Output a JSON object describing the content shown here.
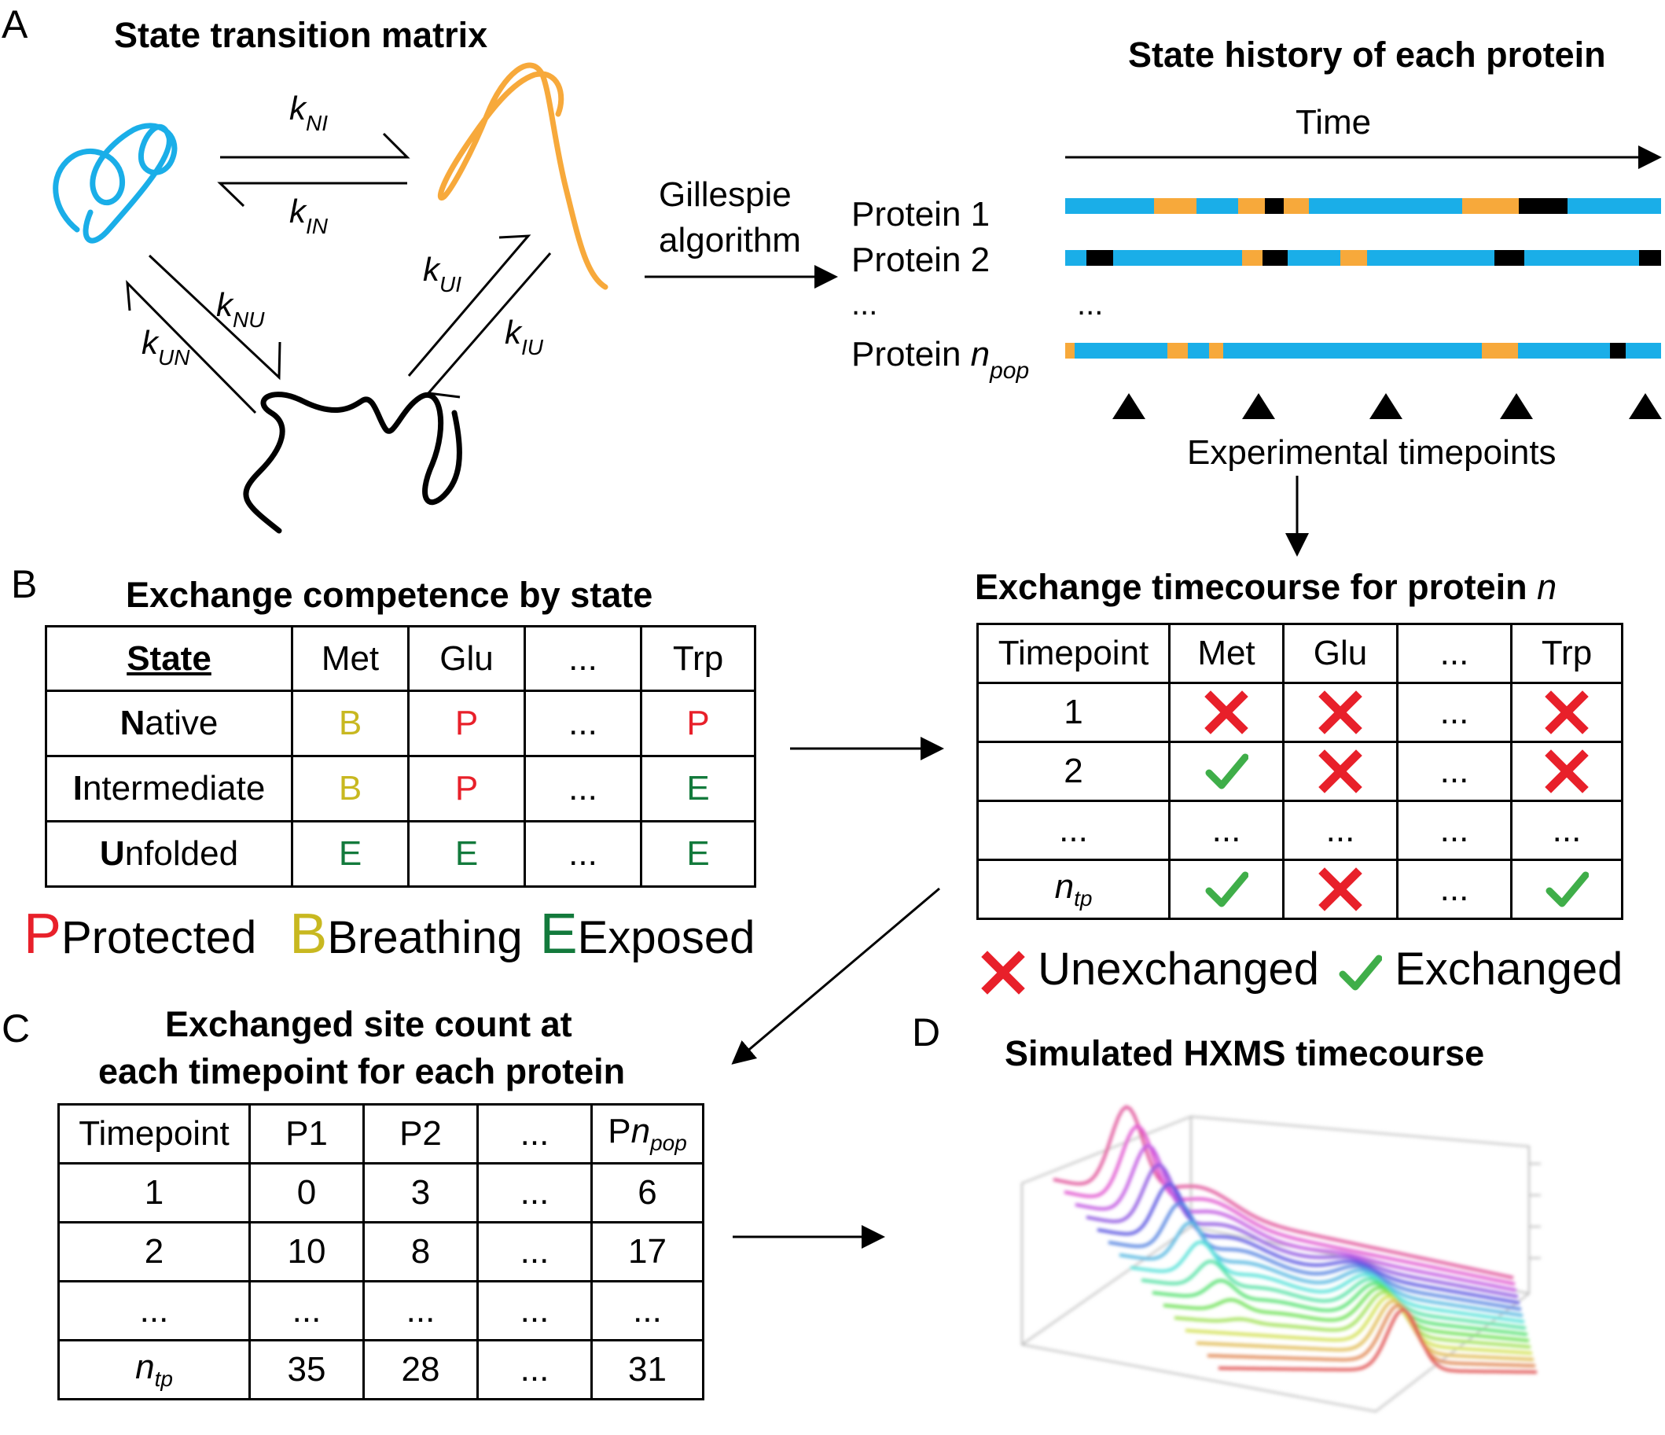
{
  "panels": {
    "a": "A",
    "b": "B",
    "c": "C",
    "d": "D"
  },
  "panel_a": {
    "title_matrix": "State transition matrix",
    "title_history": "State history of each protein",
    "rates": {
      "k_ni": {
        "k": "k",
        "sub": "NI"
      },
      "k_in": {
        "k": "k",
        "sub": "IN"
      },
      "k_nu": {
        "k": "k",
        "sub": "NU"
      },
      "k_un": {
        "k": "k",
        "sub": "UN"
      },
      "k_ui": {
        "k": "k",
        "sub": "UI"
      },
      "k_iu": {
        "k": "k",
        "sub": "IU"
      }
    },
    "gillespie_line1": "Gillespie",
    "gillespie_line2": "algorithm",
    "time_label": "Time",
    "protein1": "Protein 1",
    "protein2": "Protein 2",
    "ellipsis": "...",
    "protein_n_prefix": "Protein ",
    "protein_n_var": "n",
    "protein_n_sub": "pop",
    "timepoints_label": "Experimental timepoints",
    "colors": {
      "native": "#1aaee8",
      "intermediate": "#f7a93b",
      "unfolded": "#000000"
    }
  },
  "panel_b": {
    "title": "Exchange competence by state",
    "header": [
      "State",
      "Met",
      "Glu",
      "...",
      "Trp"
    ],
    "rows": [
      {
        "first": "N",
        "rest": "ative",
        "cells": [
          "B",
          "P",
          "...",
          "P"
        ]
      },
      {
        "first": "I",
        "rest": "ntermediate",
        "cells": [
          "B",
          "P",
          "...",
          "E"
        ]
      },
      {
        "first": "U",
        "rest": "nfolded",
        "cells": [
          "E",
          "E",
          "...",
          "E"
        ]
      }
    ],
    "legend": [
      {
        "letter": "P",
        "label": "Protected"
      },
      {
        "letter": "B",
        "label": "Breathing"
      },
      {
        "letter": "E",
        "label": "Exposed"
      }
    ],
    "letter_colors": {
      "P": "#e8202a",
      "B": "#c8b820",
      "E": "#137a3c"
    }
  },
  "panel_exchange": {
    "title_prefix": "Exchange timecourse for protein ",
    "title_var": "n",
    "header": [
      "Timepoint",
      "Met",
      "Glu",
      "...",
      "Trp"
    ],
    "rows": [
      {
        "tp": "1",
        "cells": [
          "x",
          "x",
          "...",
          "x"
        ]
      },
      {
        "tp": "2",
        "cells": [
          "check",
          "x",
          "...",
          "x"
        ]
      },
      {
        "tp": "...",
        "cells": [
          "...",
          "...",
          "...",
          "..."
        ]
      },
      {
        "tp_var": "n",
        "tp_sub": "tp",
        "cells": [
          "check",
          "x",
          "...",
          "check"
        ]
      }
    ],
    "legend_unexchanged": "Unexchanged",
    "legend_exchanged": "Exchanged",
    "colors": {
      "x": "#e8202a",
      "check": "#3fae49"
    }
  },
  "panel_c": {
    "title_line1": "Exchanged site count at",
    "title_line2": "each timepoint for each protein",
    "header": [
      "Timepoint",
      "P1",
      "P2",
      "...",
      "P"
    ],
    "header_last_var": "n",
    "header_last_sub": "pop",
    "rows": [
      {
        "tp": "1",
        "cells": [
          "0",
          "3",
          "...",
          "6"
        ]
      },
      {
        "tp": "2",
        "cells": [
          "10",
          "8",
          "...",
          "17"
        ]
      },
      {
        "tp": "...",
        "cells": [
          "...",
          "...",
          "...",
          "..."
        ]
      },
      {
        "tp_var": "n",
        "tp_sub": "tp",
        "cells": [
          "35",
          "28",
          "...",
          "31"
        ]
      }
    ]
  },
  "panel_d": {
    "title": "Simulated HXMS timecourse"
  }
}
